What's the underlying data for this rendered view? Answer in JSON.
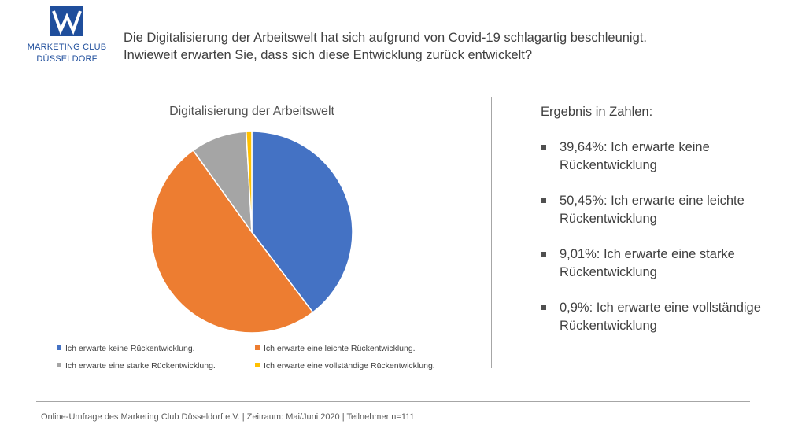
{
  "logo": {
    "line1": "MARKETING CLUB",
    "line2": "DÜSSELDORF",
    "color": "#1f4e9c"
  },
  "header": {
    "line1": "Die Digitalisierung der Arbeitswelt hat sich aufgrund von Covid-19 schlagartig beschleunigt.",
    "line2": "Inwieweit erwarten Sie, dass sich diese Entwicklung zurück entwickelt?"
  },
  "chart_data": {
    "type": "pie",
    "title": "Digitalisierung der Arbeitswelt",
    "categories": [
      "Ich erwarte keine Rückentwicklung.",
      "Ich erwarte eine leichte Rückentwicklung.",
      "Ich erwarte eine starke Rückentwicklung.",
      "Ich erwarte eine vollständige Rückentwicklung."
    ],
    "values": [
      39.64,
      50.45,
      9.01,
      0.9
    ],
    "colors": [
      "#4472c4",
      "#ed7d31",
      "#a5a5a5",
      "#ffc000"
    ],
    "legend_position": "bottom",
    "start_angle": "12 o'clock, clockwise"
  },
  "results": {
    "title": "Ergebnis in Zahlen:",
    "items": [
      "39,64%:  Ich erwarte keine Rückentwicklung",
      "50,45%: Ich erwarte eine leichte Rückentwicklung",
      "9,01%: Ich erwarte eine starke Rückentwicklung",
      "0,9%: Ich erwarte eine vollständige Rückentwicklung"
    ]
  },
  "footer": {
    "text": "Online-Umfrage des Marketing Club Düsseldorf e.V. | Zeitraum: Mai/Juni 2020 | Teilnehmer n=111"
  }
}
